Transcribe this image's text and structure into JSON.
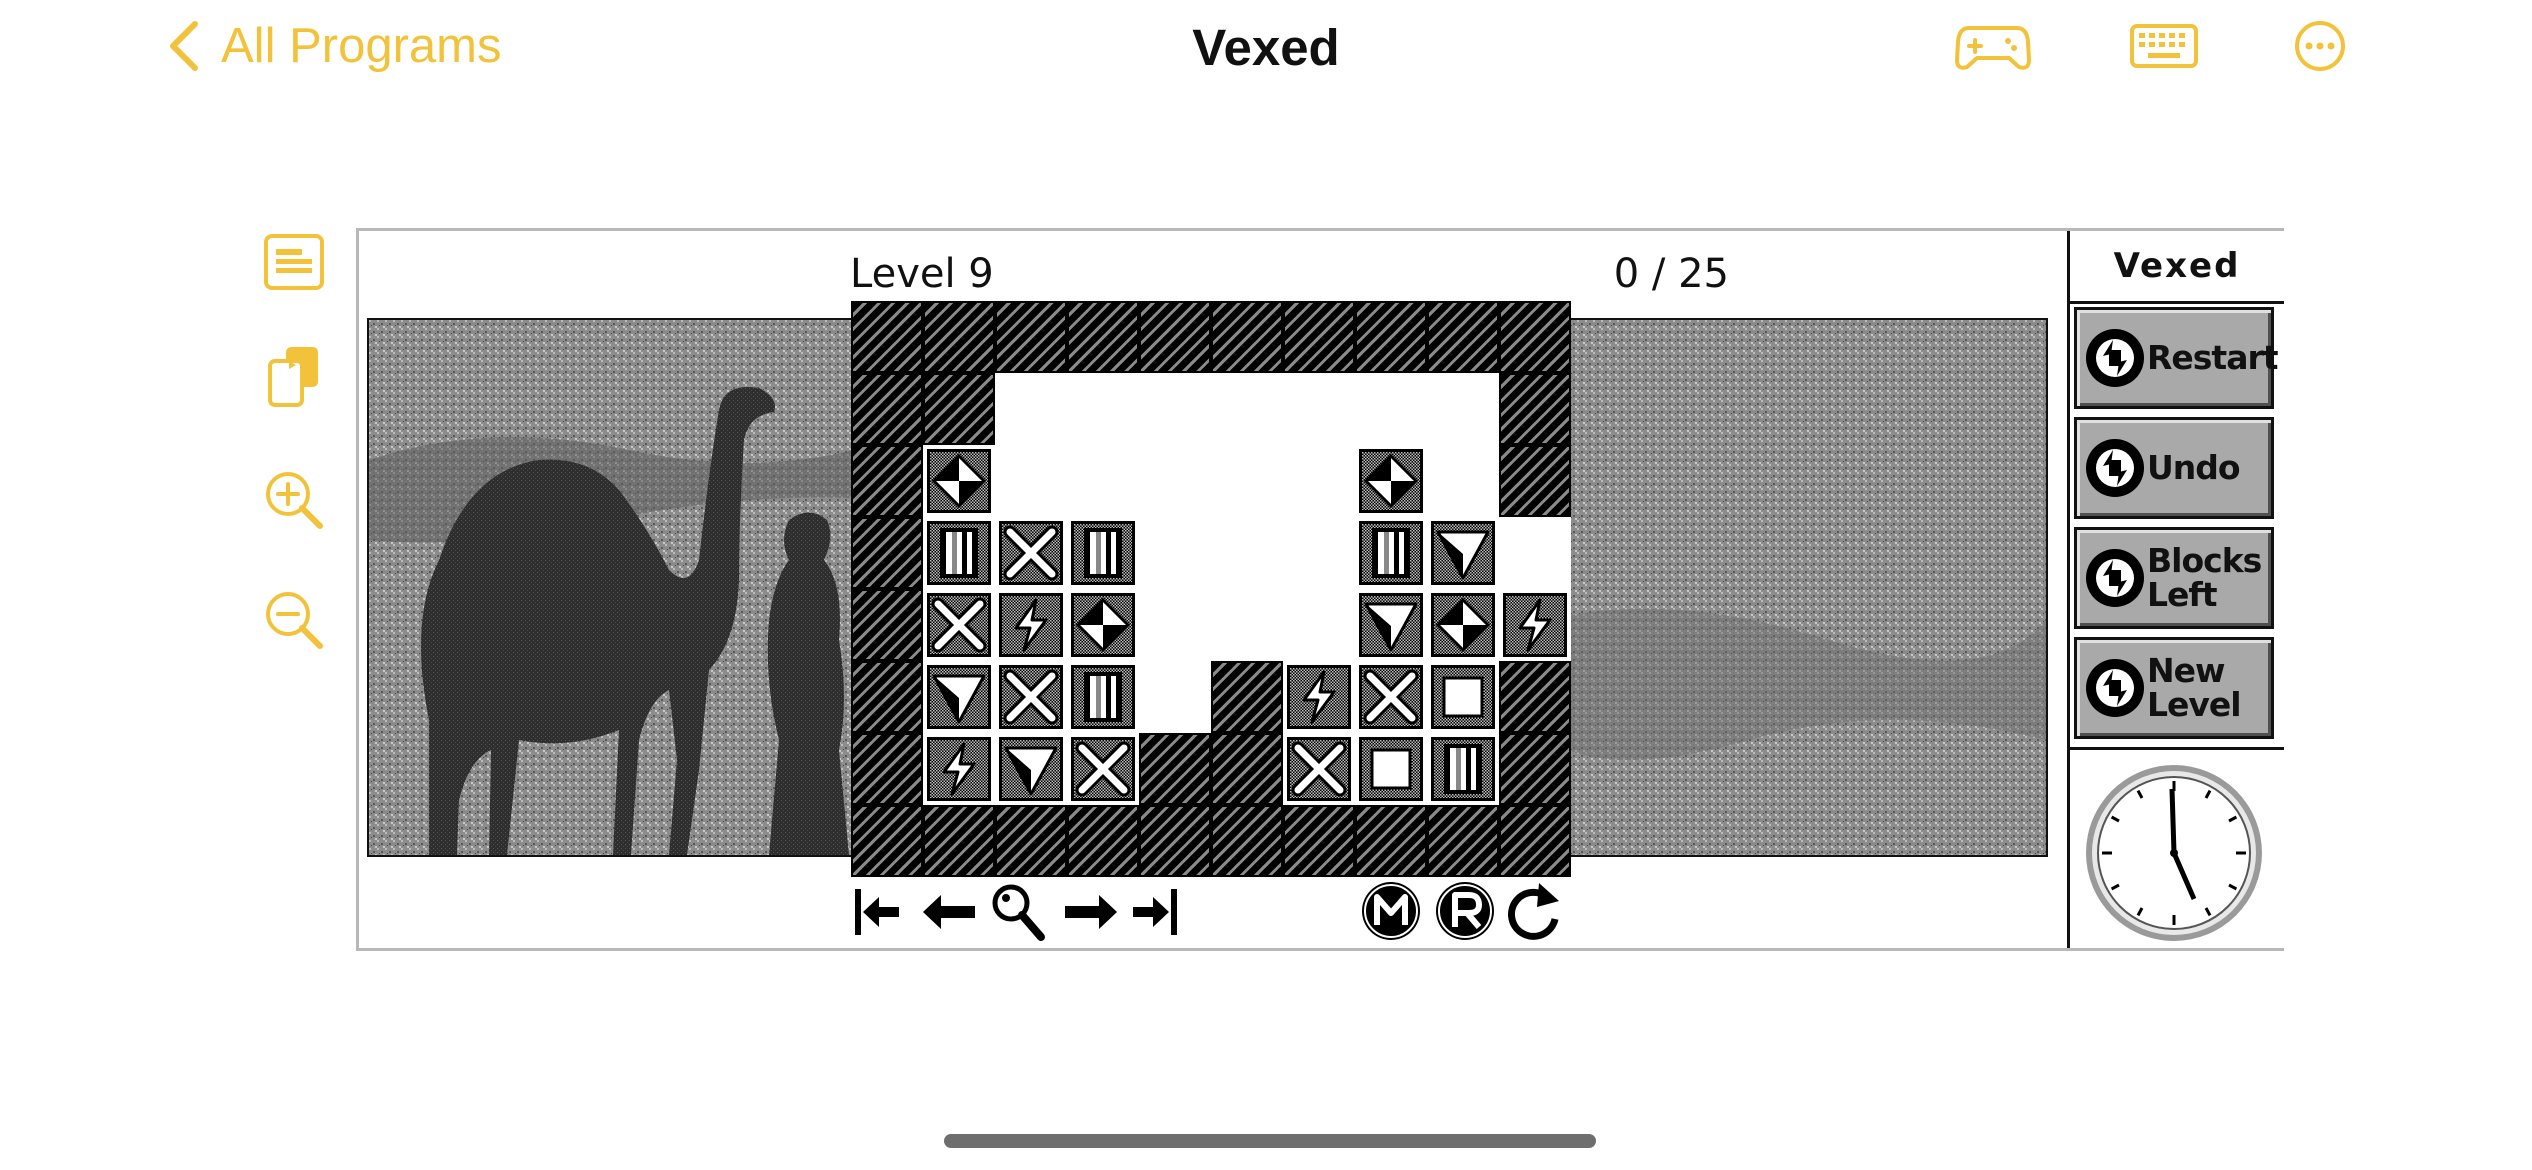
{
  "topbar": {
    "back_label": "All Programs",
    "title": "Vexed",
    "accent_color": "#f2c23a",
    "icons": [
      "gamepad-icon",
      "keyboard-icon",
      "more-icon"
    ]
  },
  "sidebar_tools": [
    "document-icon",
    "copy-icon",
    "zoom-in-icon",
    "zoom-out-icon"
  ],
  "game": {
    "level_label": "Level 9",
    "moves_label": "0 / 25",
    "board_rows": [
      "WWWWWWWWWW",
      "WW.......W",
      "WD.....D.W",
      "WPXP...PT.",
      "WXLD...TDL",
      "WTXP.WLXSW",
      "WLTXWWXSPW",
      "WWWWWWWWWW"
    ],
    "board_legend": {
      "W": "wall",
      ".": "empty",
      "D": "diamond-block",
      "P": "pill-block",
      "X": "cross-block",
      "L": "lightning-block",
      "T": "triangle-block",
      "S": "square-block"
    },
    "controls_left": [
      "first-level-icon",
      "previous-level-icon",
      "magnifier-icon",
      "next-level-icon",
      "last-level-icon"
    ],
    "controls_right": [
      "music-toggle-icon",
      "replay-icon",
      "redo-icon"
    ]
  },
  "panel": {
    "title": "Vexed",
    "buttons": [
      "Restart",
      "Undo",
      "Blocks Left",
      "New Level"
    ]
  }
}
